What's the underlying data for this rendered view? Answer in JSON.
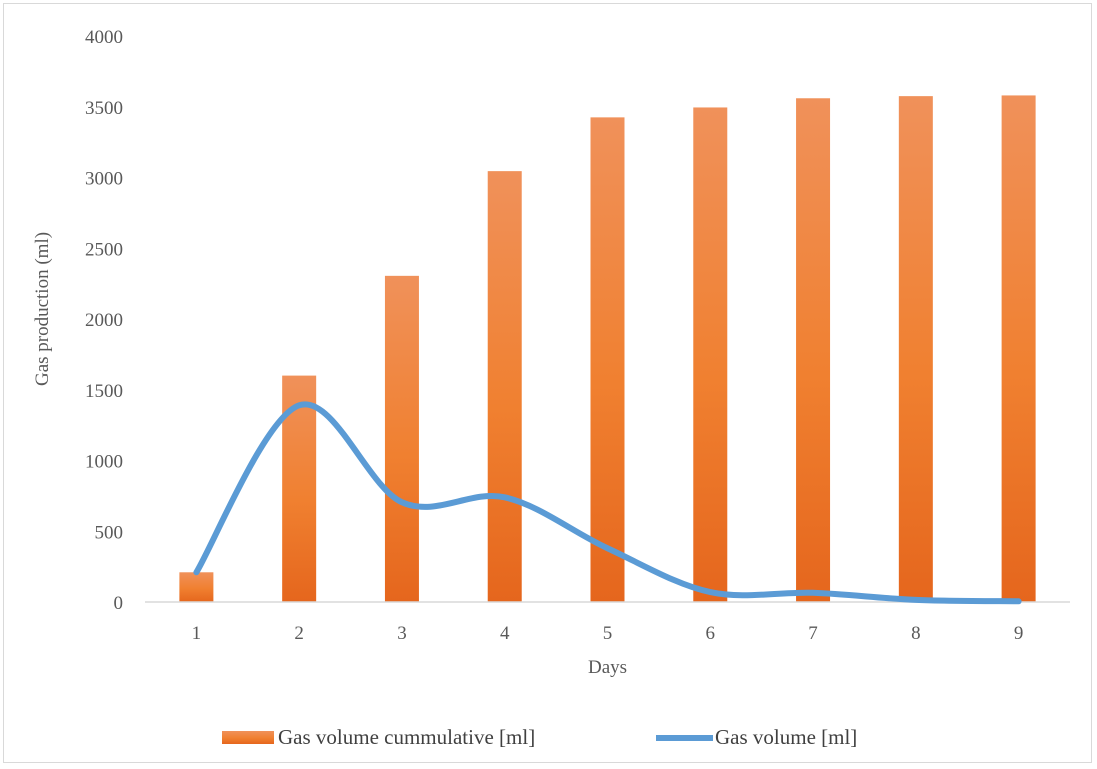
{
  "chart_data": {
    "type": "bar",
    "categories": [
      "1",
      "2",
      "3",
      "4",
      "5",
      "6",
      "7",
      "8",
      "9"
    ],
    "series": [
      {
        "name": "Gas volume cummulative [ml]",
        "kind": "bar",
        "color": "#ed7d31",
        "values": [
          210,
          1600,
          2305,
          3045,
          3425,
          3495,
          3560,
          3575,
          3580
        ]
      },
      {
        "name": "Gas volume [ml]",
        "kind": "line",
        "smooth": true,
        "color": "#5b9bd5",
        "values": [
          210,
          1390,
          705,
          740,
          380,
          70,
          65,
          15,
          5
        ]
      }
    ],
    "xlabel": "Days",
    "ylabel": "Gas production (ml)",
    "ylim": [
      0,
      4000
    ],
    "yticks": [
      "0",
      "500",
      "1000",
      "1500",
      "2000",
      "2500",
      "3000",
      "3500",
      "4000"
    ],
    "grid": false,
    "legend_position": "bottom"
  }
}
